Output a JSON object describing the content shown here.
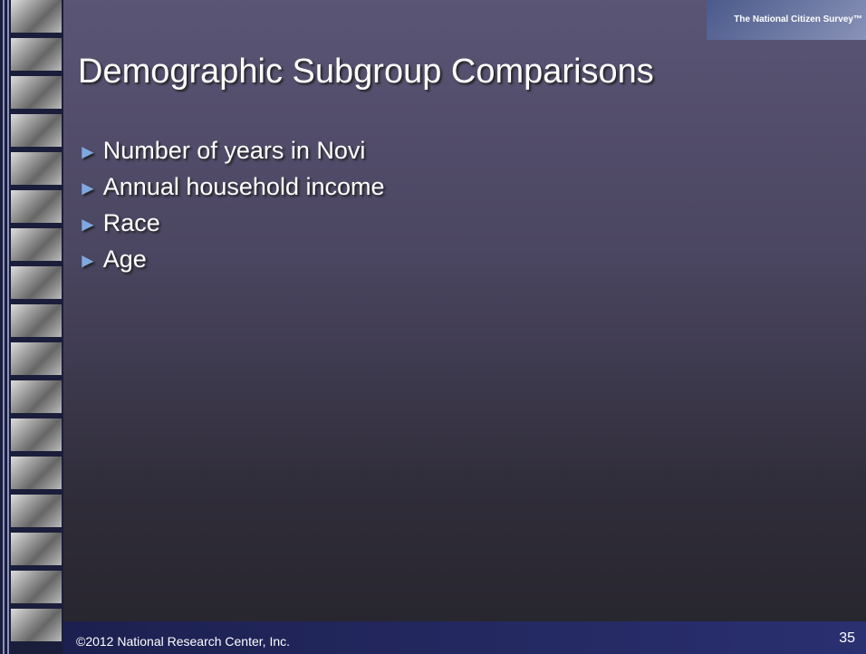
{
  "logo": "The National Citizen Survey™",
  "title": "Demographic Subgroup Comparisons",
  "bullets": [
    "Number of years in Novi",
    "Annual household income",
    "Race",
    "Age"
  ],
  "footer": {
    "copyright": "©2012 National Research Center, Inc.",
    "page": "35"
  }
}
